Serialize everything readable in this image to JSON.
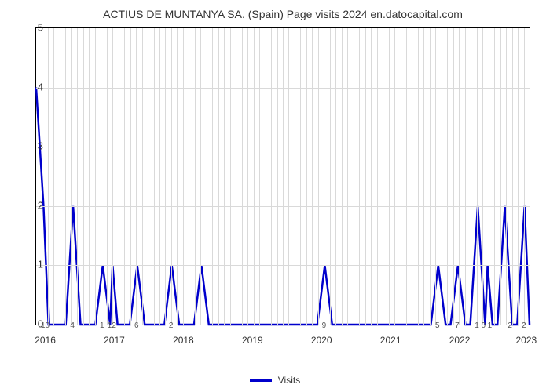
{
  "chart": {
    "type": "line",
    "title": "ACTIUS DE MUNTANYA SA. (Spain) Page visits 2024 en.datocapital.com",
    "title_fontsize": 14,
    "background_color": "#ffffff",
    "grid_color": "#d9d9d9",
    "border_color": "#000000",
    "line_color": "#0000cc",
    "line_width": 2.5,
    "ylim": [
      0,
      5
    ],
    "yticks": [
      0,
      1,
      2,
      3,
      4,
      5
    ],
    "x_major_ticks": [
      "2016",
      "2017",
      "2018",
      "2019",
      "2020",
      "2021",
      "2022",
      "2023"
    ],
    "x_major_positions": [
      0.02,
      0.16,
      0.3,
      0.44,
      0.58,
      0.72,
      0.86,
      0.995
    ],
    "x_minor_labels": [
      "10",
      "4",
      "1",
      "12",
      "6",
      "2",
      "9",
      "5",
      "7",
      "1",
      "0",
      "1",
      "2",
      "2"
    ],
    "x_minor_positions": [
      0.02,
      0.075,
      0.135,
      0.155,
      0.205,
      0.275,
      0.585,
      0.815,
      0.855,
      0.895,
      0.908,
      0.921,
      0.962,
      0.99
    ],
    "legend": {
      "label": "Visits",
      "color": "#0000cc"
    },
    "series": [
      {
        "x": 0.0,
        "y": 4.0
      },
      {
        "x": 0.015,
        "y": 2.0
      },
      {
        "x": 0.025,
        "y": 0.0
      },
      {
        "x": 0.06,
        "y": 0.0
      },
      {
        "x": 0.075,
        "y": 2.0
      },
      {
        "x": 0.09,
        "y": 0.0
      },
      {
        "x": 0.12,
        "y": 0.0
      },
      {
        "x": 0.135,
        "y": 1.0
      },
      {
        "x": 0.15,
        "y": 0.0
      },
      {
        "x": 0.155,
        "y": 1.0
      },
      {
        "x": 0.165,
        "y": 0.0
      },
      {
        "x": 0.19,
        "y": 0.0
      },
      {
        "x": 0.205,
        "y": 1.0
      },
      {
        "x": 0.22,
        "y": 0.0
      },
      {
        "x": 0.26,
        "y": 0.0
      },
      {
        "x": 0.275,
        "y": 1.0
      },
      {
        "x": 0.29,
        "y": 0.0
      },
      {
        "x": 0.32,
        "y": 0.0
      },
      {
        "x": 0.335,
        "y": 1.0
      },
      {
        "x": 0.35,
        "y": 0.0
      },
      {
        "x": 0.57,
        "y": 0.0
      },
      {
        "x": 0.585,
        "y": 1.0
      },
      {
        "x": 0.6,
        "y": 0.0
      },
      {
        "x": 0.8,
        "y": 0.0
      },
      {
        "x": 0.815,
        "y": 1.0
      },
      {
        "x": 0.83,
        "y": 0.0
      },
      {
        "x": 0.84,
        "y": 0.0
      },
      {
        "x": 0.855,
        "y": 1.0
      },
      {
        "x": 0.87,
        "y": 0.0
      },
      {
        "x": 0.88,
        "y": 0.0
      },
      {
        "x": 0.895,
        "y": 2.0
      },
      {
        "x": 0.91,
        "y": 0.0
      },
      {
        "x": 0.915,
        "y": 1.0
      },
      {
        "x": 0.925,
        "y": 0.0
      },
      {
        "x": 0.935,
        "y": 0.0
      },
      {
        "x": 0.95,
        "y": 2.0
      },
      {
        "x": 0.965,
        "y": 0.0
      },
      {
        "x": 0.975,
        "y": 0.0
      },
      {
        "x": 0.99,
        "y": 2.0
      },
      {
        "x": 1.0,
        "y": 0.0
      }
    ]
  }
}
